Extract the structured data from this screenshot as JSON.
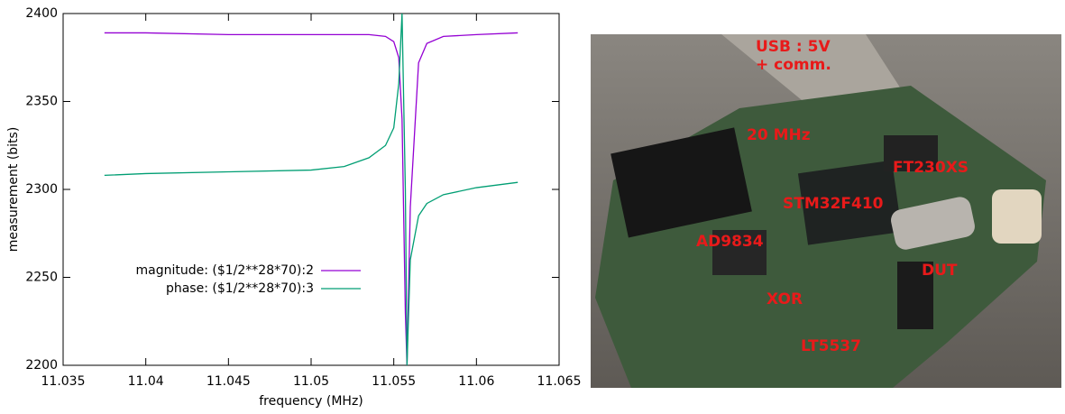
{
  "chart_data": {
    "type": "line",
    "x_label": "frequency (MHz)",
    "y_label": "measurement (bits)",
    "x": [
      11.0375,
      11.04,
      11.045,
      11.05,
      11.052,
      11.0535,
      11.0545,
      11.055,
      11.0553,
      11.0555,
      11.0557,
      11.0558,
      11.056,
      11.0565,
      11.057,
      11.058,
      11.06,
      11.0625
    ],
    "series": [
      {
        "name": "magnitude: ($1/2**28*70):2",
        "color": "#9400d3",
        "values": [
          2389,
          2389,
          2388,
          2388,
          2388,
          2388,
          2387,
          2384,
          2375,
          2340,
          2230,
          2200,
          2290,
          2372,
          2383,
          2387,
          2388,
          2389
        ]
      },
      {
        "name": "phase: ($1/2**28*70):3",
        "color": "#009e73",
        "values": [
          2308,
          2309,
          2310,
          2311,
          2313,
          2318,
          2325,
          2335,
          2360,
          2400,
          2300,
          2200,
          2260,
          2285,
          2292,
          2297,
          2301,
          2304
        ]
      }
    ],
    "xlim": [
      11.035,
      11.065
    ],
    "xticks": [
      11.035,
      11.04,
      11.045,
      11.05,
      11.055,
      11.06,
      11.065
    ],
    "ylim": [
      2200,
      2400
    ],
    "yticks": [
      2200,
      2250,
      2300,
      2350,
      2400
    ],
    "legend": "lower left",
    "grid": false
  },
  "photo": {
    "labels": [
      "USB : 5V",
      "+ comm.",
      "20 MHz",
      "FT230XS",
      "STM32F410",
      "AD9834",
      "DUT",
      "XOR",
      "LT5537"
    ]
  }
}
